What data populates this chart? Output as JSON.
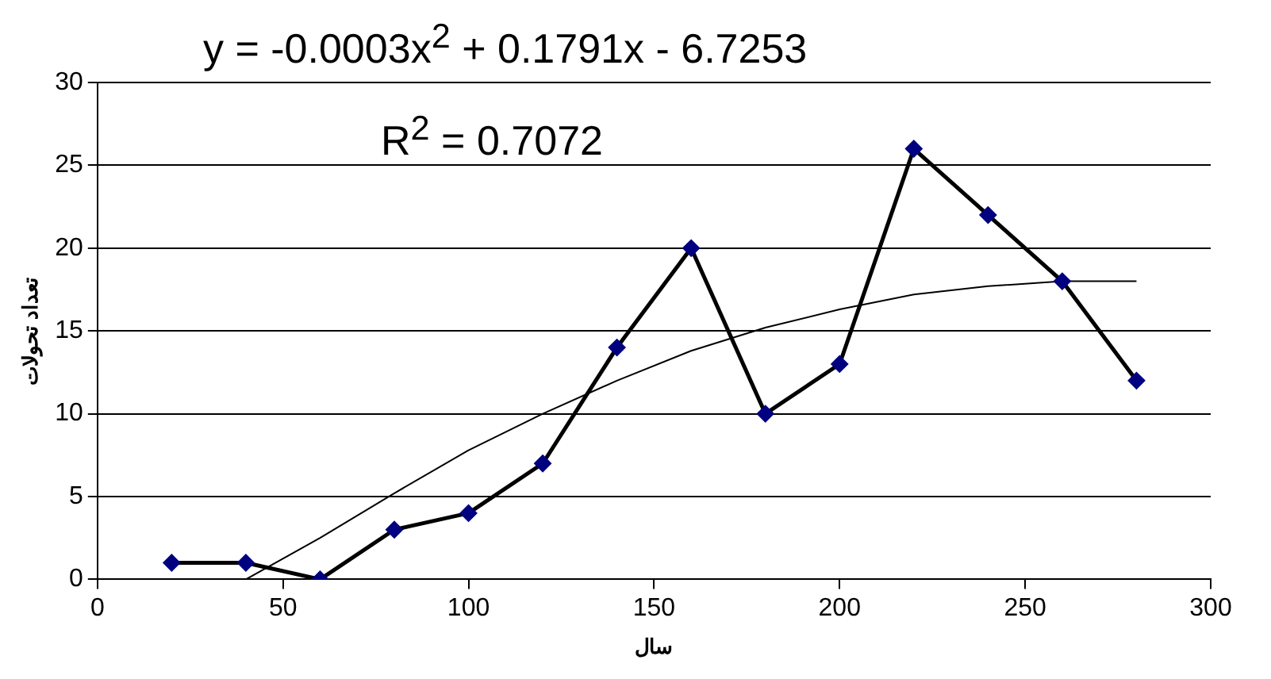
{
  "chart_data": {
    "type": "line",
    "xlabel": "سال",
    "ylabel": "تعداد تحولات",
    "annotations": [
      "y = -0.0003x$^{2}$ + 0.1791x - 6.7253",
      "R$^{2}$ = 0.7072"
    ],
    "xlim": [
      0,
      300
    ],
    "xticks": [
      0,
      50,
      100,
      150,
      200,
      250,
      300
    ],
    "ylim": [
      0,
      30
    ],
    "yticks": [
      0,
      5,
      10,
      15,
      20,
      25,
      30
    ],
    "grid": "y",
    "legend": false,
    "series": [
      {
        "type": "line",
        "color": "#000000",
        "colors": [
          "#000080",
          "#000080",
          "#000080",
          "#000080",
          "#000080",
          "#000080",
          "#000080",
          "#000080",
          "#000080",
          "#000080",
          "#000080",
          "#000080",
          "#000080",
          "#000080"
        ],
        "marker": "diamond",
        "line_style": "solid",
        "x": [
          20,
          40,
          60,
          80,
          100,
          120,
          140,
          160,
          180,
          200,
          220,
          240,
          260,
          280
        ],
        "values": [
          1,
          1,
          0,
          3,
          4,
          7,
          14,
          20,
          10,
          13,
          26,
          22,
          18,
          12
        ]
      },
      {
        "type": "line",
        "color": "#000000",
        "marker": "none",
        "line_style": "solid",
        "x": [
          40,
          60,
          80,
          100,
          120,
          140,
          160,
          180,
          200,
          220,
          240,
          260,
          280
        ],
        "values": [
          0,
          2.5,
          5.2,
          7.8,
          10,
          12,
          13.8,
          15.2,
          16.3,
          17.2,
          17.7,
          18,
          18
        ]
      }
    ]
  }
}
